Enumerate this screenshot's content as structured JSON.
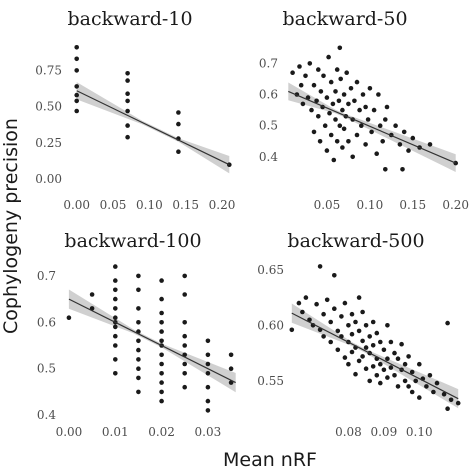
{
  "axis_labels": {
    "x": "Mean nRF",
    "y": "Cophylogeny precision"
  },
  "colors": {
    "points": "#1a1a1a",
    "line": "#333333",
    "band": "#c8c8c8"
  },
  "chart_data": [
    {
      "type": "scatter",
      "title": "backward-10",
      "xlim": [
        -0.012,
        0.222
      ],
      "ylim": [
        -0.04,
        0.96
      ],
      "xticks": [
        0.0,
        0.05,
        0.1,
        0.15,
        0.2
      ],
      "xtick_labels": [
        "0.00",
        "0.05",
        "0.10",
        "0.15",
        "0.20"
      ],
      "yticks": [
        0.0,
        0.25,
        0.5,
        0.75
      ],
      "ytick_labels": [
        "0.00",
        "0.25",
        "0.50",
        "0.75"
      ],
      "grid": false,
      "fit": {
        "x0": 0.0,
        "x1": 0.21,
        "y0": 0.61,
        "y1": 0.1,
        "band_x0": 0.09,
        "band_x1": 0.14
      },
      "points": [
        [
          0.0,
          0.91
        ],
        [
          0.0,
          0.83
        ],
        [
          0.0,
          0.75
        ],
        [
          0.0,
          0.64
        ],
        [
          0.0,
          0.58
        ],
        [
          0.0,
          0.54
        ],
        [
          0.0,
          0.47
        ],
        [
          0.07,
          0.73
        ],
        [
          0.07,
          0.68
        ],
        [
          0.07,
          0.59
        ],
        [
          0.07,
          0.54
        ],
        [
          0.07,
          0.47
        ],
        [
          0.07,
          0.37
        ],
        [
          0.07,
          0.29
        ],
        [
          0.14,
          0.46
        ],
        [
          0.14,
          0.38
        ],
        [
          0.14,
          0.28
        ],
        [
          0.14,
          0.19
        ],
        [
          0.21,
          0.1
        ]
      ]
    },
    {
      "type": "scatter",
      "title": "backward-50",
      "xlim": [
        0.0,
        0.205
      ],
      "ylim": [
        0.3,
        0.775
      ],
      "xticks": [
        0.05,
        0.1,
        0.15,
        0.2
      ],
      "xtick_labels": [
        "0.05",
        "0.10",
        "0.15",
        "0.20"
      ],
      "yticks": [
        0.4,
        0.5,
        0.6,
        0.7
      ],
      "ytick_labels": [
        "0.4",
        "0.5",
        "0.6",
        "0.7"
      ],
      "grid": false,
      "fit": {
        "x0": 0.005,
        "x1": 0.2,
        "y0": 0.61,
        "y1": 0.38,
        "band_x0": 0.06,
        "band_x1": 0.07
      },
      "points": [
        [
          0.01,
          0.67
        ],
        [
          0.015,
          0.6
        ],
        [
          0.018,
          0.69
        ],
        [
          0.02,
          0.63
        ],
        [
          0.022,
          0.57
        ],
        [
          0.025,
          0.66
        ],
        [
          0.028,
          0.59
        ],
        [
          0.03,
          0.7
        ],
        [
          0.032,
          0.55
        ],
        [
          0.035,
          0.48
        ],
        [
          0.035,
          0.63
        ],
        [
          0.038,
          0.58
        ],
        [
          0.04,
          0.68
        ],
        [
          0.04,
          0.53
        ],
        [
          0.042,
          0.45
        ],
        [
          0.043,
          0.61
        ],
        [
          0.045,
          0.56
        ],
        [
          0.046,
          0.66
        ],
        [
          0.048,
          0.5
        ],
        [
          0.05,
          0.59
        ],
        [
          0.05,
          0.42
        ],
        [
          0.052,
          0.72
        ],
        [
          0.053,
          0.54
        ],
        [
          0.055,
          0.64
        ],
        [
          0.055,
          0.47
        ],
        [
          0.057,
          0.57
        ],
        [
          0.058,
          0.39
        ],
        [
          0.06,
          0.61
        ],
        [
          0.06,
          0.52
        ],
        [
          0.062,
          0.68
        ],
        [
          0.062,
          0.45
        ],
        [
          0.064,
          0.58
        ],
        [
          0.065,
          0.5
        ],
        [
          0.065,
          0.75
        ],
        [
          0.066,
          0.65
        ],
        [
          0.068,
          0.55
        ],
        [
          0.068,
          0.43
        ],
        [
          0.07,
          0.6
        ],
        [
          0.07,
          0.49
        ],
        [
          0.072,
          0.53
        ],
        [
          0.073,
          0.67
        ],
        [
          0.075,
          0.57
        ],
        [
          0.075,
          0.45
        ],
        [
          0.078,
          0.62
        ],
        [
          0.08,
          0.52
        ],
        [
          0.08,
          0.4
        ],
        [
          0.082,
          0.58
        ],
        [
          0.085,
          0.47
        ],
        [
          0.085,
          0.64
        ],
        [
          0.088,
          0.55
        ],
        [
          0.09,
          0.5
        ],
        [
          0.092,
          0.6
        ],
        [
          0.095,
          0.44
        ],
        [
          0.095,
          0.56
        ],
        [
          0.098,
          0.52
        ],
        [
          0.1,
          0.62
        ],
        [
          0.102,
          0.48
        ],
        [
          0.105,
          0.55
        ],
        [
          0.108,
          0.41
        ],
        [
          0.11,
          0.6
        ],
        [
          0.112,
          0.5
        ],
        [
          0.115,
          0.45
        ],
        [
          0.118,
          0.52
        ],
        [
          0.12,
          0.56
        ],
        [
          0.125,
          0.47
        ],
        [
          0.13,
          0.5
        ],
        [
          0.135,
          0.44
        ],
        [
          0.14,
          0.48
        ],
        [
          0.145,
          0.42
        ],
        [
          0.15,
          0.46
        ],
        [
          0.158,
          0.43
        ],
        [
          0.17,
          0.44
        ],
        [
          0.118,
          0.36
        ],
        [
          0.138,
          0.36
        ],
        [
          0.2,
          0.38
        ]
      ]
    },
    {
      "type": "scatter",
      "title": "backward-100",
      "xlim": [
        -0.0015,
        0.0365
      ],
      "ylim": [
        0.385,
        0.73
      ],
      "xticks": [
        0.0,
        0.01,
        0.02,
        0.03
      ],
      "xtick_labels": [
        "0.00",
        "0.01",
        "0.02",
        "0.03"
      ],
      "yticks": [
        0.4,
        0.5,
        0.6,
        0.7
      ],
      "ytick_labels": [
        "0.4",
        "0.5",
        "0.6",
        "0.7"
      ],
      "grid": false,
      "fit": {
        "x0": 0.0,
        "x1": 0.036,
        "y0": 0.65,
        "y1": 0.47,
        "band_x0": 0.014,
        "band_x1": 0.02
      },
      "points": [
        [
          0.0,
          0.61
        ],
        [
          0.005,
          0.66
        ],
        [
          0.005,
          0.63
        ],
        [
          0.01,
          0.72
        ],
        [
          0.01,
          0.69
        ],
        [
          0.01,
          0.67
        ],
        [
          0.01,
          0.65
        ],
        [
          0.01,
          0.63
        ],
        [
          0.01,
          0.61
        ],
        [
          0.01,
          0.6
        ],
        [
          0.01,
          0.59
        ],
        [
          0.01,
          0.57
        ],
        [
          0.01,
          0.55
        ],
        [
          0.01,
          0.52
        ],
        [
          0.01,
          0.49
        ],
        [
          0.015,
          0.7
        ],
        [
          0.015,
          0.67
        ],
        [
          0.015,
          0.63
        ],
        [
          0.015,
          0.6
        ],
        [
          0.015,
          0.58
        ],
        [
          0.015,
          0.56
        ],
        [
          0.015,
          0.54
        ],
        [
          0.015,
          0.52
        ],
        [
          0.015,
          0.5
        ],
        [
          0.015,
          0.48
        ],
        [
          0.015,
          0.45
        ],
        [
          0.02,
          0.69
        ],
        [
          0.02,
          0.65
        ],
        [
          0.02,
          0.62
        ],
        [
          0.02,
          0.6
        ],
        [
          0.02,
          0.58
        ],
        [
          0.02,
          0.56
        ],
        [
          0.02,
          0.55
        ],
        [
          0.02,
          0.53
        ],
        [
          0.02,
          0.51
        ],
        [
          0.02,
          0.49
        ],
        [
          0.02,
          0.47
        ],
        [
          0.02,
          0.45
        ],
        [
          0.02,
          0.43
        ],
        [
          0.025,
          0.7
        ],
        [
          0.025,
          0.66
        ],
        [
          0.025,
          0.6
        ],
        [
          0.025,
          0.57
        ],
        [
          0.025,
          0.55
        ],
        [
          0.025,
          0.53
        ],
        [
          0.025,
          0.51
        ],
        [
          0.025,
          0.49
        ],
        [
          0.025,
          0.46
        ],
        [
          0.03,
          0.56
        ],
        [
          0.03,
          0.53
        ],
        [
          0.03,
          0.51
        ],
        [
          0.03,
          0.49
        ],
        [
          0.03,
          0.46
        ],
        [
          0.03,
          0.43
        ],
        [
          0.03,
          0.41
        ],
        [
          0.035,
          0.53
        ],
        [
          0.035,
          0.5
        ],
        [
          0.035,
          0.47
        ]
      ]
    },
    {
      "type": "scatter",
      "title": "backward-500",
      "xlim": [
        0.0635,
        0.1115
      ],
      "ylim": [
        0.513,
        0.657
      ],
      "xticks": [
        0.08,
        0.09,
        0.1
      ],
      "xtick_labels": [
        "0.08",
        "0.09",
        "0.10"
      ],
      "yticks": [
        0.55,
        0.6,
        0.65
      ],
      "ytick_labels": [
        "0.55",
        "0.60",
        "0.65"
      ],
      "grid": false,
      "fit": {
        "x0": 0.064,
        "x1": 0.111,
        "y0": 0.611,
        "y1": 0.534,
        "band_x0": 0.081,
        "band_x1": 0.085
      },
      "points": [
        [
          0.064,
          0.596
        ],
        [
          0.066,
          0.62
        ],
        [
          0.067,
          0.612
        ],
        [
          0.068,
          0.625
        ],
        [
          0.069,
          0.605
        ],
        [
          0.07,
          0.6
        ],
        [
          0.071,
          0.619
        ],
        [
          0.072,
          0.653
        ],
        [
          0.072,
          0.596
        ],
        [
          0.073,
          0.61
        ],
        [
          0.073,
          0.59
        ],
        [
          0.074,
          0.623
        ],
        [
          0.075,
          0.603
        ],
        [
          0.075,
          0.585
        ],
        [
          0.076,
          0.645
        ],
        [
          0.076,
          0.615
        ],
        [
          0.077,
          0.595
        ],
        [
          0.077,
          0.578
        ],
        [
          0.078,
          0.608
        ],
        [
          0.078,
          0.59
        ],
        [
          0.079,
          0.62
        ],
        [
          0.079,
          0.571
        ],
        [
          0.08,
          0.6
        ],
        [
          0.08,
          0.585
        ],
        [
          0.08,
          0.565
        ],
        [
          0.081,
          0.61
        ],
        [
          0.081,
          0.592
        ],
        [
          0.081,
          0.576
        ],
        [
          0.082,
          0.603
        ],
        [
          0.082,
          0.58
        ],
        [
          0.082,
          0.556
        ],
        [
          0.083,
          0.625
        ],
        [
          0.083,
          0.595
        ],
        [
          0.083,
          0.568
        ],
        [
          0.084,
          0.612
        ],
        [
          0.084,
          0.586
        ],
        [
          0.084,
          0.572
        ],
        [
          0.085,
          0.6
        ],
        [
          0.085,
          0.58
        ],
        [
          0.085,
          0.561
        ],
        [
          0.086,
          0.59
        ],
        [
          0.086,
          0.575
        ],
        [
          0.086,
          0.55
        ],
        [
          0.087,
          0.603
        ],
        [
          0.087,
          0.582
        ],
        [
          0.087,
          0.563
        ],
        [
          0.088,
          0.593
        ],
        [
          0.088,
          0.57
        ],
        [
          0.088,
          0.555
        ],
        [
          0.089,
          0.585
        ],
        [
          0.089,
          0.565
        ],
        [
          0.089,
          0.548
        ],
        [
          0.09,
          0.578
        ],
        [
          0.09,
          0.56
        ],
        [
          0.091,
          0.6
        ],
        [
          0.091,
          0.57
        ],
        [
          0.091,
          0.553
        ],
        [
          0.092,
          0.585
        ],
        [
          0.092,
          0.562
        ],
        [
          0.093,
          0.575
        ],
        [
          0.093,
          0.555
        ],
        [
          0.094,
          0.57
        ],
        [
          0.094,
          0.545
        ],
        [
          0.095,
          0.583
        ],
        [
          0.095,
          0.56
        ],
        [
          0.096,
          0.565
        ],
        [
          0.096,
          0.55
        ],
        [
          0.097,
          0.572
        ],
        [
          0.097,
          0.545
        ],
        [
          0.098,
          0.558
        ],
        [
          0.098,
          0.54
        ],
        [
          0.099,
          0.55
        ],
        [
          0.1,
          0.565
        ],
        [
          0.1,
          0.535
        ],
        [
          0.101,
          0.552
        ],
        [
          0.102,
          0.545
        ],
        [
          0.103,
          0.555
        ],
        [
          0.104,
          0.54
        ],
        [
          0.105,
          0.548
        ],
        [
          0.107,
          0.538
        ],
        [
          0.108,
          0.602
        ],
        [
          0.108,
          0.525
        ],
        [
          0.109,
          0.533
        ],
        [
          0.111,
          0.53
        ]
      ]
    }
  ]
}
